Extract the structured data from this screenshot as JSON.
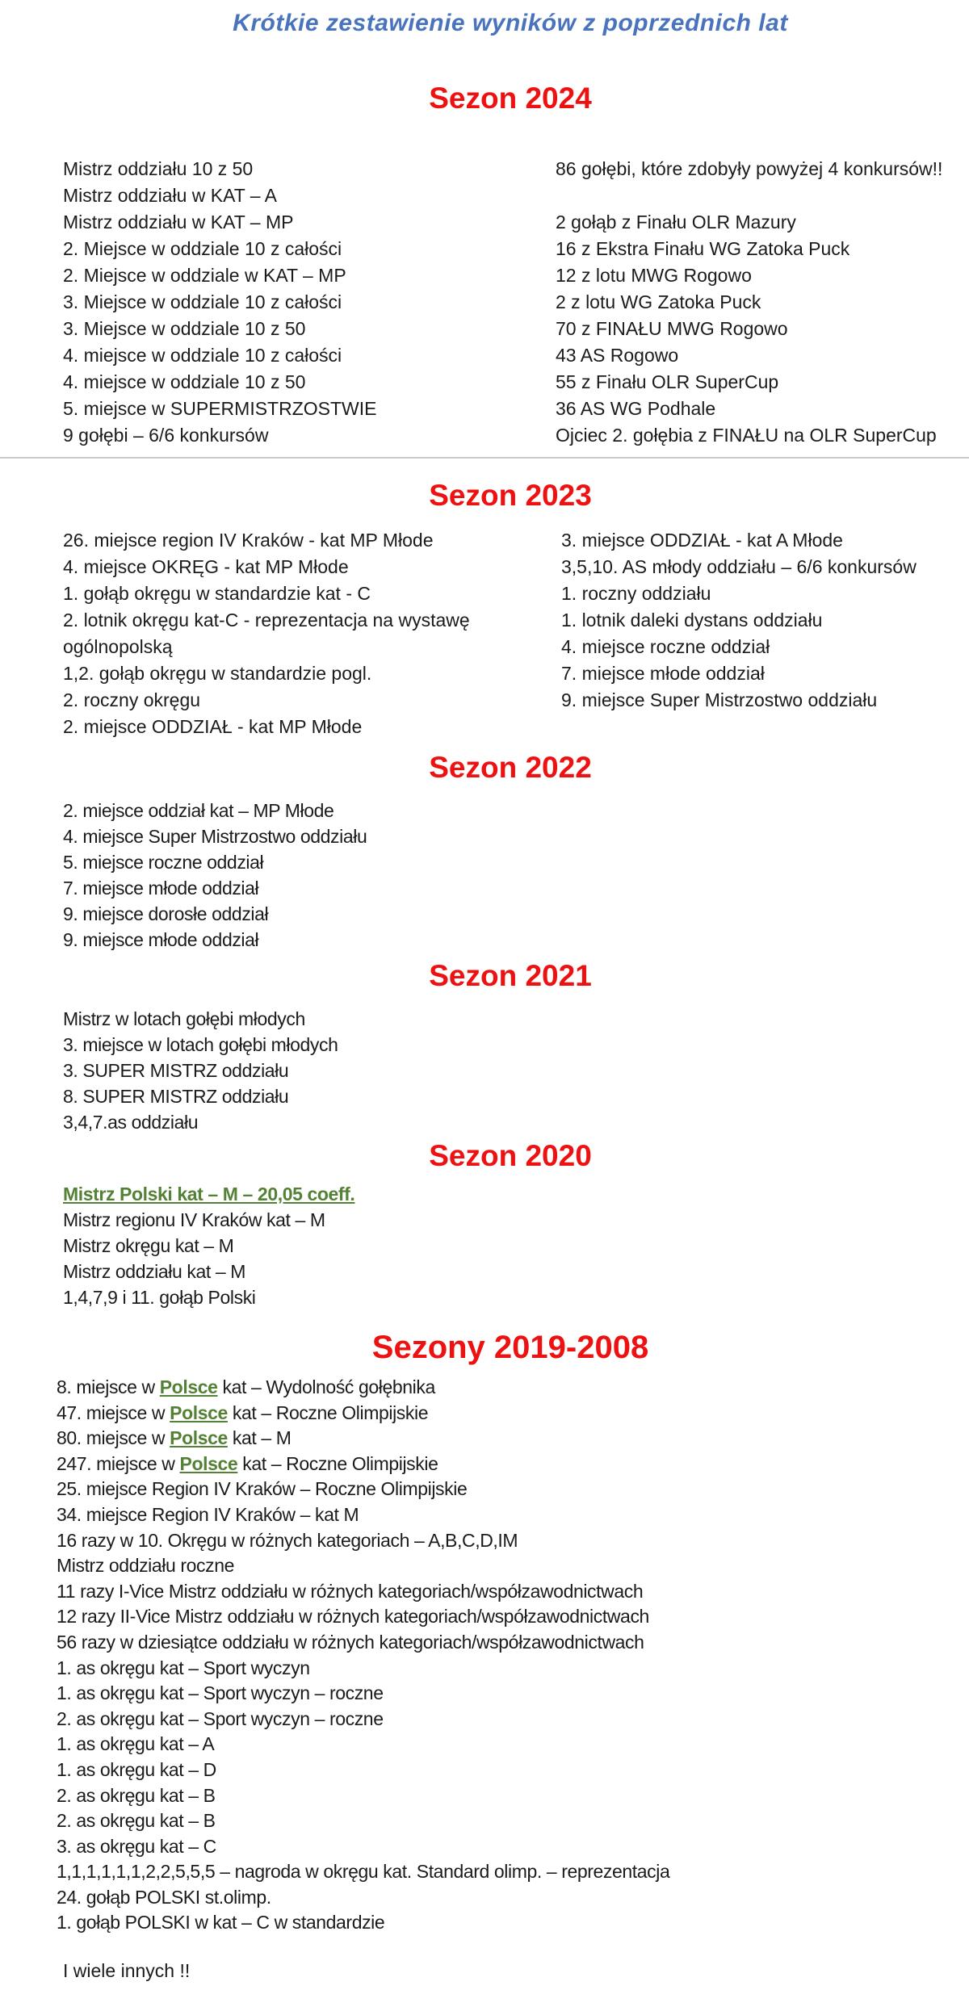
{
  "page": {
    "title": "Krótkie zestawienie wyników z poprzednich lat",
    "footer": "I wiele innych !!"
  },
  "colors": {
    "title_blue": "#4a73be",
    "header_red": "#ee1111",
    "link_green": "#538135",
    "body_text": "#1b1b1b"
  },
  "sections": [
    {
      "id": "sezon-2024",
      "header": "Sezon 2024",
      "left": [
        "Mistrz oddziału 10 z 50",
        "Mistrz oddziału w KAT – A",
        "Mistrz oddziału w KAT – MP",
        "2. Miejsce w oddziale 10 z całości",
        "2. Miejsce w oddziale w KAT – MP",
        "3. Miejsce w oddziale 10 z całości",
        "3. Miejsce w oddziale 10 z 50",
        "4. miejsce w oddziale 10 z całości",
        "4. miejsce w oddziale 10 z 50",
        "5. miejsce w SUPERMISTRZOSTWIE",
        "9 gołębi – 6/6 konkursów"
      ],
      "right": [
        "86 gołębi, które zdobyły powyżej 4 konkursów!!",
        "",
        "2 gołąb z Finału OLR Mazury",
        "16 z Ekstra Finału WG Zatoka Puck",
        "12 z lotu MWG Rogowo",
        "2 z lotu WG Zatoka Puck",
        "70 z FINAŁU MWG Rogowo",
        "43 AS Rogowo",
        "55 z Finału OLR SuperCup",
        "36 AS WG Podhale",
        "Ojciec 2. gołębia z FINAŁU na OLR SuperCup"
      ]
    },
    {
      "id": "sezon-2023",
      "header": "Sezon 2023",
      "left": [
        "26. miejsce region IV Kraków - kat MP Młode",
        "4. miejsce OKRĘG - kat MP Młode",
        "1. gołąb okręgu w standardzie kat - C",
        "2. lotnik okręgu kat-C - reprezentacja na wystawę",
        "ogólnopolską",
        "1,2. gołąb okręgu w standardzie pogl.",
        "2. roczny okręgu",
        "2. miejsce ODDZIAŁ - kat MP Młode"
      ],
      "right": [
        "3. miejsce ODDZIAŁ - kat A Młode",
        "3,5,10. AS młody oddziału – 6/6 konkursów",
        "1. roczny oddziału",
        "1. lotnik daleki dystans oddziału",
        "4. miejsce roczne oddział",
        "7. miejsce młode oddział",
        "9. miejsce Super Mistrzostwo oddziału"
      ]
    },
    {
      "id": "sezon-2022",
      "header": "Sezon 2022",
      "items": [
        "2. miejsce oddział kat – MP Młode",
        "4. miejsce Super Mistrzostwo oddziału",
        "5. miejsce roczne oddział",
        "7. miejsce młode oddział",
        "9. miejsce dorosłe oddział",
        "9. miejsce młode oddział"
      ]
    },
    {
      "id": "sezon-2021",
      "header": "Sezon 2021",
      "items": [
        "Mistrz w lotach gołębi młodych",
        "3. miejsce w lotach gołębi młodych",
        "3. SUPER MISTRZ oddziału",
        "8. SUPER MISTRZ oddziału",
        "3,4,7.as oddziału"
      ]
    },
    {
      "id": "sezon-2020",
      "header": "Sezon 2020",
      "items": [
        {
          "parts": [
            {
              "text": "Mistrz Polski kat – M – 20,05 coeff.",
              "style": "green-u"
            }
          ]
        },
        "Mistrz regionu IV Kraków kat – M",
        "Mistrz okręgu kat – M",
        "Mistrz oddziału kat – M",
        "1,4,7,9 i 11. gołąb Polski"
      ]
    },
    {
      "id": "sezony-2019-2008",
      "header": "Sezony 2019-2008",
      "items": [
        {
          "parts": [
            {
              "text": "8. miejsce w "
            },
            {
              "text": "Polsce",
              "style": "green-u",
              "link": true
            },
            {
              "text": " kat – Wydolność gołębnika"
            }
          ]
        },
        {
          "parts": [
            {
              "text": "47. miejsce w "
            },
            {
              "text": "Polsce",
              "style": "green-u",
              "link": true
            },
            {
              "text": " kat – Roczne Olimpijskie"
            }
          ]
        },
        {
          "parts": [
            {
              "text": "80. miejsce w "
            },
            {
              "text": "Polsce",
              "style": "green-u",
              "link": true
            },
            {
              "text": " kat – M"
            }
          ]
        },
        {
          "parts": [
            {
              "text": "247. miejsce w "
            },
            {
              "text": "Polsce",
              "style": "green-u",
              "link": true
            },
            {
              "text": " kat – Roczne Olimpijskie"
            }
          ]
        },
        "25. miejsce Region IV Kraków – Roczne Olimpijskie",
        "34. miejsce Region IV Kraków – kat M",
        "16 razy w 10. Okręgu w różnych kategoriach – A,B,C,D,IM",
        "Mistrz oddziału roczne",
        "11 razy I-Vice Mistrz oddziału w różnych kategoriach/współzawodnictwach",
        "12 razy II-Vice Mistrz oddziału w różnych kategoriach/współzawodnictwach",
        "56 razy w dziesiątce oddziału w różnych kategoriach/współzawodnictwach",
        "1. as okręgu kat – Sport wyczyn",
        "1. as okręgu kat – Sport wyczyn – roczne",
        "2. as okręgu kat – Sport wyczyn – roczne",
        "1. as okręgu kat – A",
        "1. as okręgu kat – D",
        "2. as okręgu kat – B",
        "2. as okręgu kat – B",
        "3. as okręgu kat – C",
        "1,1,1,1,1,1,2,2,5,5,5 – nagroda w okręgu kat. Standard olimp. – reprezentacja",
        "24. gołąb POLSKI st.olimp.",
        "1. gołąb POLSKI w kat – C w standardzie"
      ]
    }
  ]
}
